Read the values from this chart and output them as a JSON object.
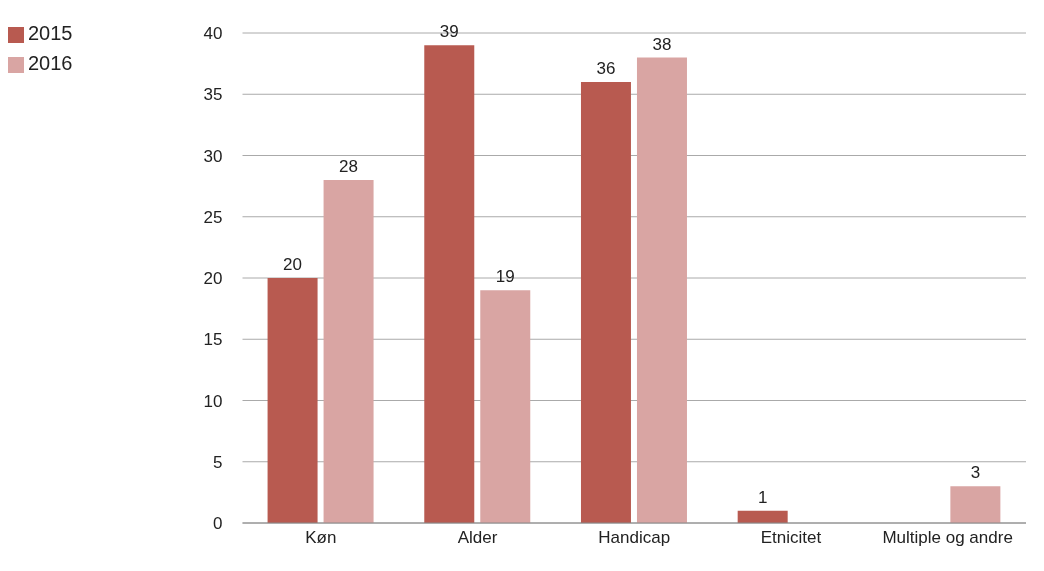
{
  "chart_data": {
    "type": "bar",
    "categories": [
      "Køn",
      "Alder",
      "Handicap",
      "Etnicitet",
      "Multiple og andre"
    ],
    "series": [
      {
        "name": "2015",
        "color": "#b85a50",
        "values": [
          20,
          39,
          36,
          1,
          null
        ]
      },
      {
        "name": "2016",
        "color": "#d9a5a3",
        "values": [
          28,
          19,
          38,
          null,
          3
        ]
      }
    ],
    "ylim": [
      0,
      40
    ],
    "yticks": [
      0,
      5,
      10,
      15,
      20,
      25,
      30,
      35,
      40
    ],
    "grid": "y",
    "legend": "top left",
    "data_labels": true
  }
}
